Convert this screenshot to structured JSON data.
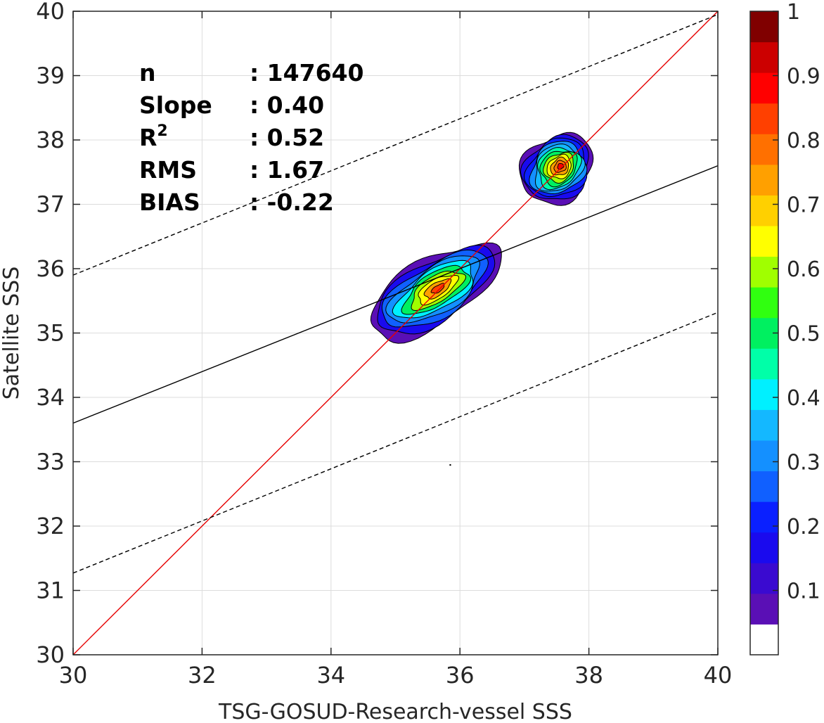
{
  "chart_data": {
    "type": "contour-density-scatter",
    "xlabel": "TSG-GOSUD-Research-vessel SSS",
    "ylabel": "Satellite SSS",
    "xlim": [
      30,
      40
    ],
    "ylim": [
      30,
      40
    ],
    "x_ticks": [
      "30",
      "32",
      "34",
      "36",
      "38",
      "40"
    ],
    "y_ticks": [
      "30",
      "31",
      "32",
      "33",
      "34",
      "35",
      "36",
      "37",
      "38",
      "39",
      "40"
    ],
    "grid": true,
    "stats": [
      {
        "name": "n",
        "value": ": 147640"
      },
      {
        "name": "Slope",
        "value": ": 0.40"
      },
      {
        "name": "R",
        "sup": "2",
        "value": ": 0.52"
      },
      {
        "name": "RMS",
        "value": ": 1.67"
      },
      {
        "name": "BIAS",
        "value": ": -0.22"
      }
    ],
    "lines": [
      {
        "kind": "one-to-one",
        "color": "#e60000",
        "style": "solid",
        "points": [
          [
            30,
            30
          ],
          [
            40,
            40
          ]
        ]
      },
      {
        "kind": "regression",
        "color": "#000000",
        "style": "solid",
        "points": [
          [
            30,
            33.6
          ],
          [
            40,
            37.6
          ]
        ]
      },
      {
        "kind": "upper-bound",
        "color": "#000000",
        "style": "dashed",
        "points": [
          [
            30,
            35.9
          ],
          [
            40,
            39.95
          ]
        ]
      },
      {
        "kind": "lower-bound",
        "color": "#000000",
        "style": "dashed",
        "points": [
          [
            30,
            31.27
          ],
          [
            40,
            35.32
          ]
        ]
      }
    ],
    "contours": [
      {
        "id": "upper-cluster",
        "center": [
          37.5,
          37.55
        ],
        "rx": 0.6,
        "ry": 0.5,
        "rotate_deg": -40,
        "levels": 12,
        "peak": 0.9
      },
      {
        "id": "main-cluster",
        "center": [
          35.6,
          35.65
        ],
        "rx": 1.15,
        "ry": 0.5,
        "rotate_deg": -32,
        "levels": 10,
        "peak": 0.85
      }
    ],
    "outlier_points": [
      [
        35.85,
        32.95
      ]
    ],
    "colorbar": {
      "range": [
        0,
        1
      ],
      "ticks": [
        "0.1",
        "0.2",
        "0.3",
        "0.4",
        "0.5",
        "0.6",
        "0.7",
        "0.8",
        "0.9",
        "1"
      ],
      "colors": [
        "#ffffff",
        "#5a0fb5",
        "#3a0ad0",
        "#1a0aee",
        "#0a20ff",
        "#1060ff",
        "#1490ff",
        "#14b8ff",
        "#00f0ff",
        "#00ffa8",
        "#00f060",
        "#30ff10",
        "#a0ff00",
        "#ffff00",
        "#ffd000",
        "#ffa000",
        "#ff7000",
        "#ff4000",
        "#ff0000",
        "#cc0000",
        "#800000"
      ]
    }
  }
}
